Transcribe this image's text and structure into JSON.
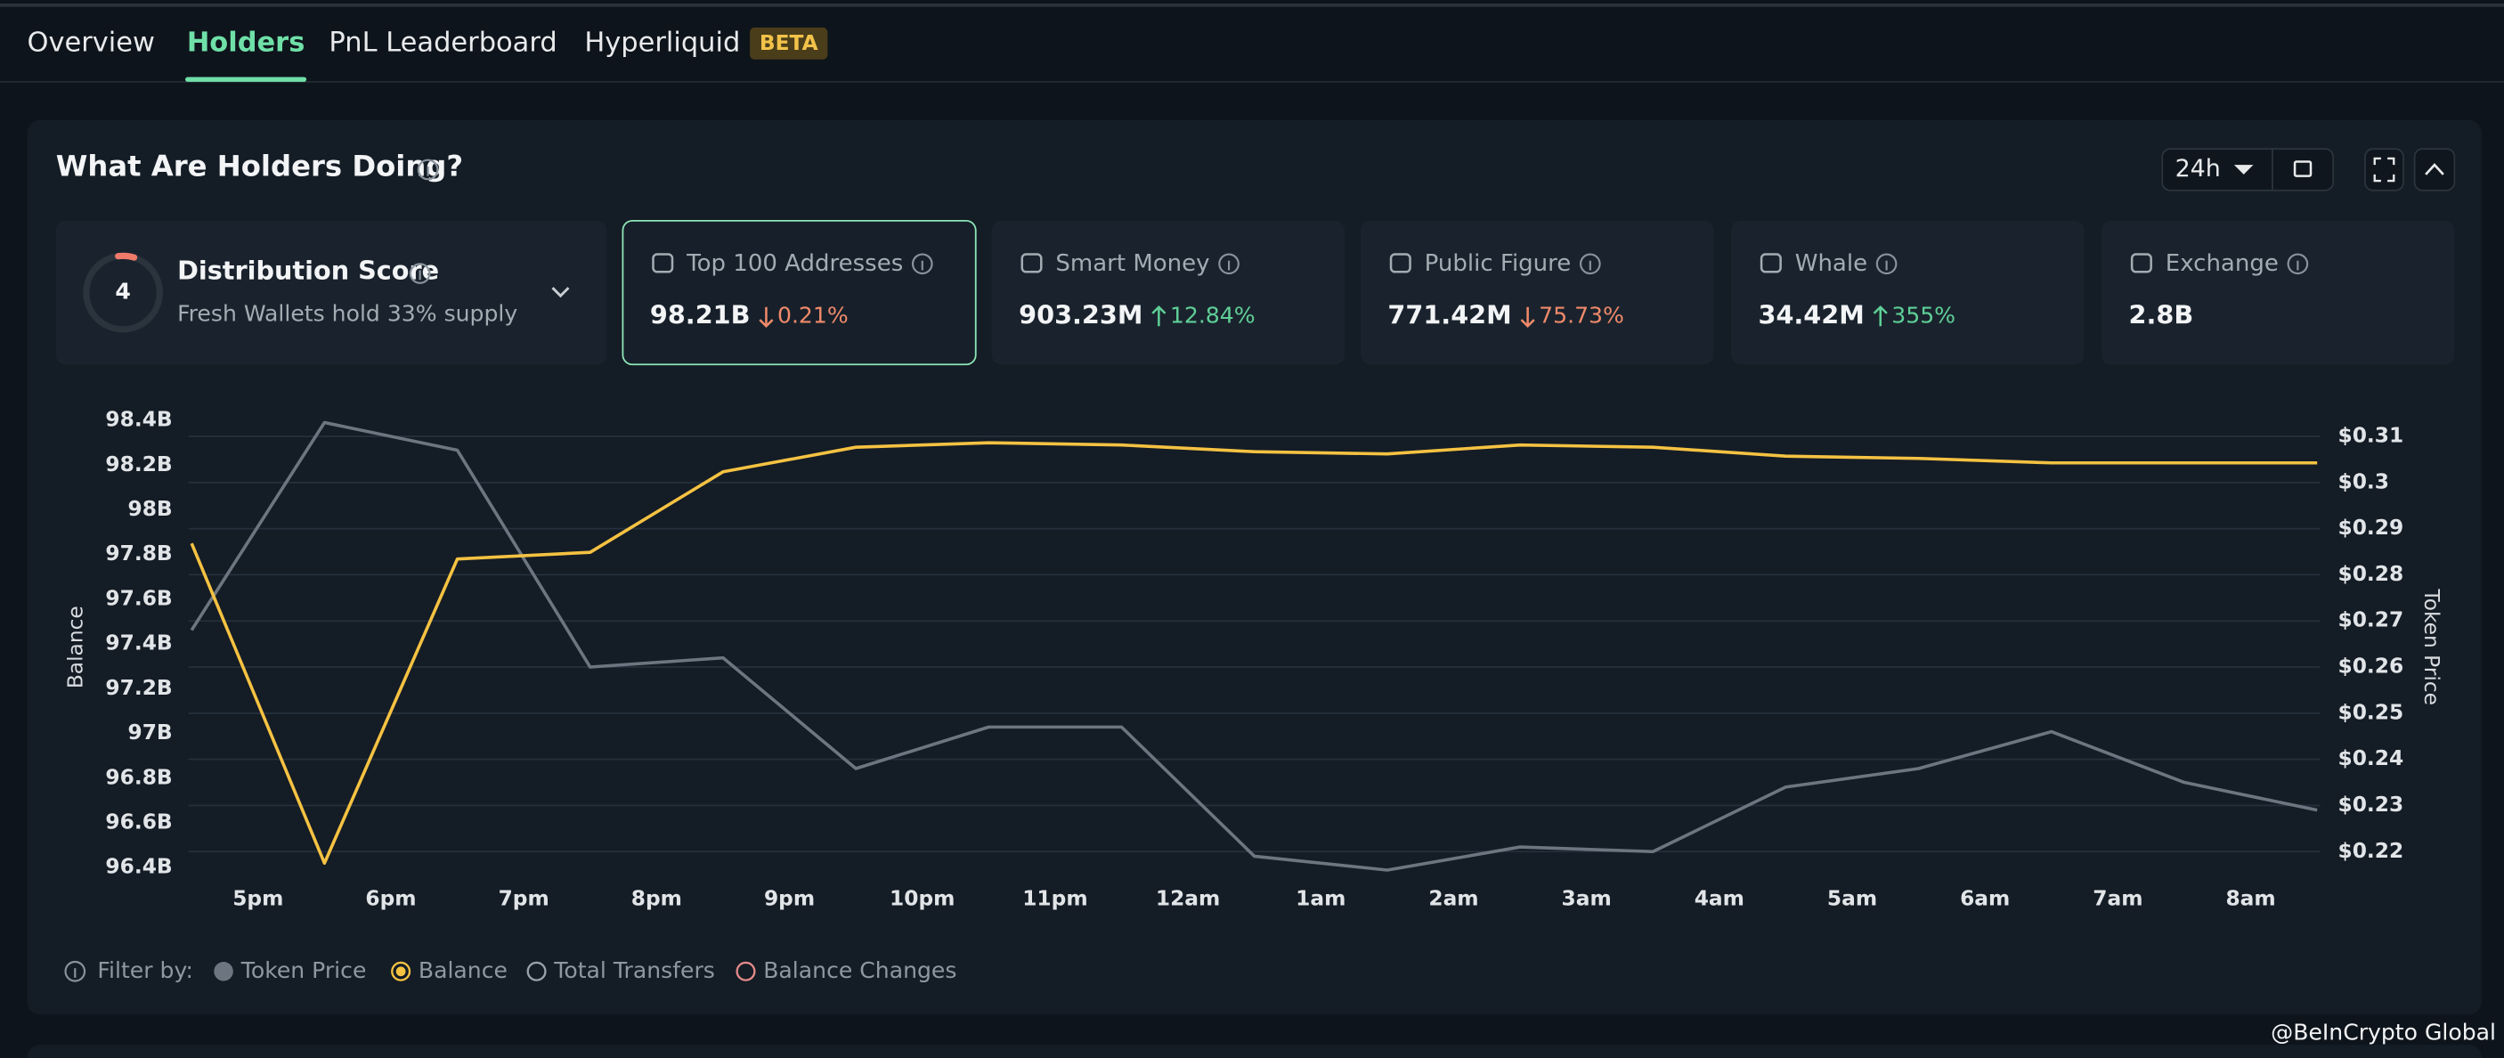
{
  "tabs": {
    "items": [
      "Overview",
      "Holders",
      "PnL Leaderboard",
      "Hyperliquid"
    ],
    "active": 1,
    "badge": "BETA"
  },
  "panel": {
    "title": "What Are Holders Doing?",
    "range": "24h"
  },
  "score_card": {
    "score": "4",
    "title": "Distribution Score",
    "subtitle": "Fresh Wallets hold 33% supply"
  },
  "cards": [
    {
      "name": "Top 100 Addresses",
      "value": "98.21B",
      "change": "0.21%",
      "direction": "down",
      "selected": true
    },
    {
      "name": "Smart Money",
      "value": "903.23M",
      "change": "12.84%",
      "direction": "up"
    },
    {
      "name": "Public Figure",
      "value": "771.42M",
      "change": "75.73%",
      "direction": "down"
    },
    {
      "name": "Whale",
      "value": "34.42M",
      "change": "355%",
      "direction": "up"
    },
    {
      "name": "Exchange",
      "value": "2.8B"
    }
  ],
  "chart_data": {
    "type": "line",
    "y_label": "Balance",
    "y2_label": "Token Price",
    "x": [
      16.5,
      17.5,
      18.5,
      19.5,
      20.5,
      21.5,
      22.5,
      23.5,
      24.5,
      25.5,
      26.5,
      27.5,
      28.5,
      29.5,
      30.5,
      31.5,
      32.5
    ],
    "xlim": [
      16.5,
      32.5
    ],
    "xticks": [
      {
        "value": 17,
        "label": "5pm"
      },
      {
        "value": 18,
        "label": "6pm"
      },
      {
        "value": 19,
        "label": "7pm"
      },
      {
        "value": 20,
        "label": "8pm"
      },
      {
        "value": 21,
        "label": "9pm"
      },
      {
        "value": 22,
        "label": "10pm"
      },
      {
        "value": 23,
        "label": "11pm"
      },
      {
        "value": 24,
        "label": "12am"
      },
      {
        "value": 25,
        "label": "1am"
      },
      {
        "value": 26,
        "label": "2am"
      },
      {
        "value": 27,
        "label": "3am"
      },
      {
        "value": 28,
        "label": "4am"
      },
      {
        "value": 29,
        "label": "5am"
      },
      {
        "value": 30,
        "label": "6am"
      },
      {
        "value": 31,
        "label": "7am"
      },
      {
        "value": 32,
        "label": "8am"
      }
    ],
    "ylim": [
      96.4,
      98.4
    ],
    "yticks": [
      {
        "value": 96.4,
        "label": "96.4B"
      },
      {
        "value": 96.6,
        "label": "96.6B"
      },
      {
        "value": 96.8,
        "label": "96.8B"
      },
      {
        "value": 97,
        "label": "97B"
      },
      {
        "value": 97.2,
        "label": "97.2B"
      },
      {
        "value": 97.4,
        "label": "97.4B"
      },
      {
        "value": 97.6,
        "label": "97.6B"
      },
      {
        "value": 97.8,
        "label": "97.8B"
      },
      {
        "value": 98,
        "label": "98B"
      },
      {
        "value": 98.2,
        "label": "98.2B"
      },
      {
        "value": 98.4,
        "label": "98.4B"
      }
    ],
    "y2lim": [
      0.22,
      0.31
    ],
    "y2ticks": [
      {
        "value": 0.22,
        "label": "$0.22"
      },
      {
        "value": 0.23,
        "label": "$0.23"
      },
      {
        "value": 0.24,
        "label": "$0.24"
      },
      {
        "value": 0.25,
        "label": "$0.25"
      },
      {
        "value": 0.26,
        "label": "$0.26"
      },
      {
        "value": 0.27,
        "label": "$0.27"
      },
      {
        "value": 0.28,
        "label": "$0.28"
      },
      {
        "value": 0.29,
        "label": "$0.29"
      },
      {
        "value": 0.3,
        "label": "$0.3"
      },
      {
        "value": 0.31,
        "label": "$0.31"
      }
    ],
    "grid": true,
    "series": [
      {
        "name": "Token Price",
        "color": "#6d7680",
        "axis": "y2",
        "values": [
          0.268,
          0.313,
          0.307,
          0.26,
          0.262,
          0.238,
          0.247,
          0.247,
          0.219,
          0.216,
          0.221,
          0.22,
          0.234,
          0.238,
          0.246,
          0.235,
          0.229
        ]
      },
      {
        "name": "Balance",
        "color": "#f5c242",
        "values": [
          97.85,
          96.42,
          97.78,
          97.81,
          98.17,
          98.28,
          98.3,
          98.29,
          98.26,
          98.25,
          98.29,
          98.28,
          98.24,
          98.23,
          98.21,
          98.21,
          98.21
        ]
      }
    ],
    "filter_label": "Filter by:",
    "other_filters": [
      {
        "name": "Total Transfers",
        "color": "#9aa3ad"
      },
      {
        "name": "Balance Changes",
        "color": "#e38a8a"
      }
    ]
  },
  "watermark": "@BeInCrypto Global"
}
